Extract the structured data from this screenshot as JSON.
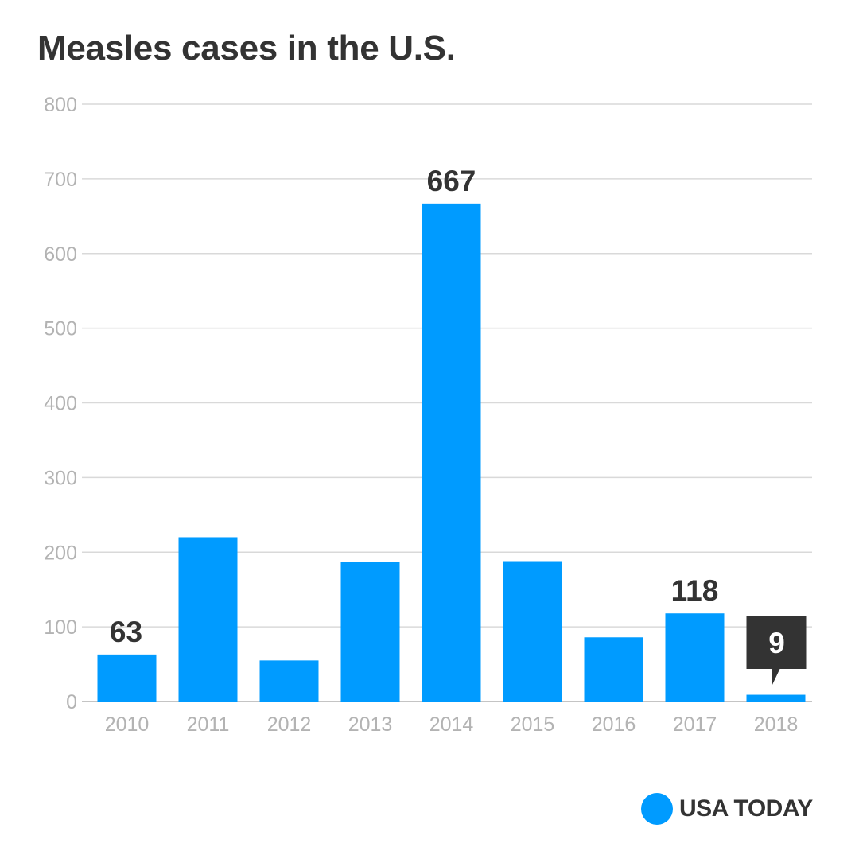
{
  "chart_data": {
    "type": "bar",
    "title": "Measles cases in the U.S.",
    "xlabel": "",
    "ylabel": "",
    "categories": [
      "2010",
      "2011",
      "2012",
      "2013",
      "2014",
      "2015",
      "2016",
      "2017",
      "2018"
    ],
    "values": [
      63,
      220,
      55,
      187,
      667,
      188,
      86,
      118,
      9
    ],
    "ylim": [
      0,
      800
    ],
    "yticks": [
      "0",
      "100",
      "200",
      "300",
      "400",
      "500",
      "600",
      "700",
      "800"
    ],
    "data_labels": [
      {
        "category": "2010",
        "text": "63",
        "style": "plain"
      },
      {
        "category": "2014",
        "text": "667",
        "style": "plain"
      },
      {
        "category": "2017",
        "text": "118",
        "style": "plain"
      },
      {
        "category": "2018",
        "text": "9",
        "style": "callout"
      }
    ],
    "grid": true,
    "bar_color": "#009bff",
    "grid_color": "#d9d9d9",
    "tick_color": "#b3b3b3",
    "label_color": "#333333",
    "callout_color": "#333333"
  },
  "brand": {
    "name": "USA TODAY",
    "color": "#009bff"
  }
}
